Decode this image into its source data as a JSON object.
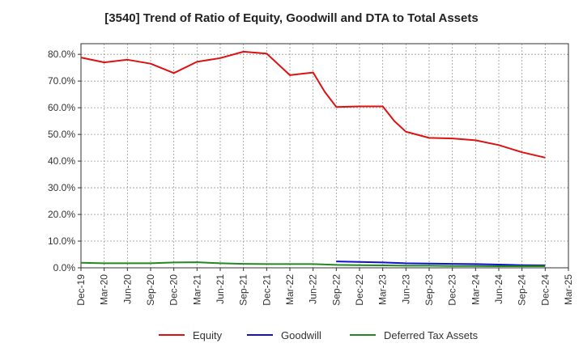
{
  "chart_data": {
    "type": "line",
    "title": "[3540]  Trend of Ratio of Equity, Goodwill and DTA to Total Assets",
    "xlabel": "",
    "ylabel": "",
    "ylim": [
      0,
      84
    ],
    "y_ticks": [
      0,
      10,
      20,
      30,
      40,
      50,
      60,
      70,
      80
    ],
    "y_tick_labels": [
      "0.0%",
      "10.0%",
      "20.0%",
      "30.0%",
      "40.0%",
      "50.0%",
      "60.0%",
      "70.0%",
      "80.0%"
    ],
    "x_tick_labels": [
      "Dec-19",
      "Mar-20",
      "Jun-20",
      "Sep-20",
      "Dec-20",
      "Mar-21",
      "Jun-21",
      "Sep-21",
      "Dec-21",
      "Mar-22",
      "Jun-22",
      "Sep-22",
      "Dec-22",
      "Mar-23",
      "Jun-23",
      "Sep-23",
      "Dec-23",
      "Mar-24",
      "Jun-24",
      "Sep-24",
      "Dec-24",
      "Mar-25"
    ],
    "grid": true,
    "legend_position": "bottom",
    "series": [
      {
        "name": "Equity",
        "color": "#dd1111",
        "x": [
          0,
          1,
          2,
          3,
          4,
          5,
          6,
          7,
          8,
          9,
          10,
          10.5,
          11,
          12,
          13,
          13.5,
          14,
          15,
          16,
          17,
          18,
          19,
          20
        ],
        "values": [
          78.8,
          77.0,
          78.0,
          76.5,
          73.0,
          77.2,
          78.6,
          81.0,
          80.3,
          72.2,
          73.2,
          66.0,
          60.3,
          60.5,
          60.5,
          55.0,
          51.0,
          48.7,
          48.5,
          47.8,
          46.0,
          43.3,
          41.3
        ]
      },
      {
        "name": "Goodwill",
        "color": "#1111cc",
        "x": [
          11,
          12,
          13,
          14,
          15,
          16,
          17,
          18,
          19,
          20
        ],
        "values": [
          2.4,
          2.2,
          2.0,
          1.7,
          1.6,
          1.5,
          1.4,
          1.2,
          1.0,
          0.9
        ]
      },
      {
        "name": "Deferred Tax Assets",
        "color": "#228822",
        "x": [
          0,
          1,
          2,
          3,
          4,
          5,
          6,
          7,
          8,
          9,
          10,
          11,
          12,
          13,
          14,
          15,
          16,
          17,
          18,
          19,
          20
        ],
        "values": [
          1.9,
          1.7,
          1.7,
          1.7,
          2.0,
          2.1,
          1.7,
          1.5,
          1.4,
          1.4,
          1.4,
          1.1,
          1.0,
          0.9,
          0.8,
          0.8,
          0.7,
          0.7,
          0.6,
          0.6,
          0.6
        ]
      }
    ]
  }
}
